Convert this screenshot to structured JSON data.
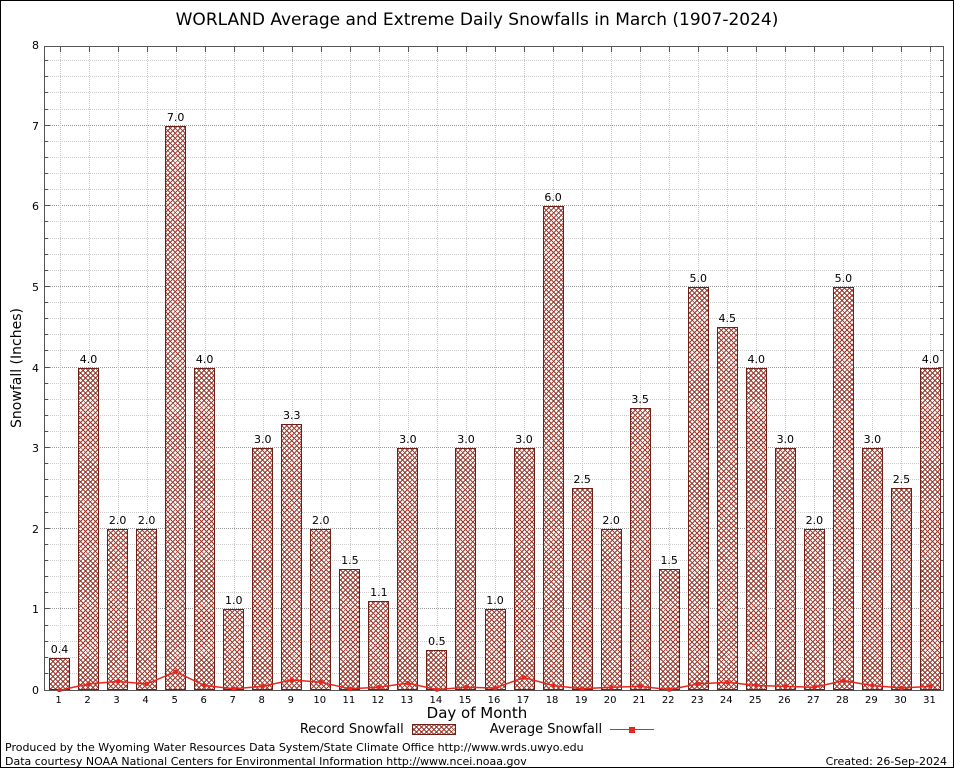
{
  "title": "WORLAND Average and Extreme Daily Snowfalls in March (1907-2024)",
  "chart_data": {
    "type": "bar",
    "title": "WORLAND Average and Extreme Daily Snowfalls in March (1907-2024)",
    "xlabel": "Day of Month",
    "ylabel": "Snowfall (Inches)",
    "ylim": [
      0,
      8
    ],
    "yticks": [
      0,
      1,
      2,
      3,
      4,
      5,
      6,
      7,
      8
    ],
    "grid": true,
    "legend_position": "bottom",
    "categories": [
      1,
      2,
      3,
      4,
      5,
      6,
      7,
      8,
      9,
      10,
      11,
      12,
      13,
      14,
      15,
      16,
      17,
      18,
      19,
      20,
      21,
      22,
      23,
      24,
      25,
      26,
      27,
      28,
      29,
      30,
      31
    ],
    "series": [
      {
        "name": "Record Snowfall",
        "type": "bar",
        "values": [
          0.4,
          4.0,
          2.0,
          2.0,
          7.0,
          4.0,
          1.0,
          3.0,
          3.3,
          2.0,
          1.5,
          1.1,
          3.0,
          0.5,
          3.0,
          1.0,
          3.0,
          6.0,
          2.5,
          2.0,
          3.5,
          1.5,
          5.0,
          4.5,
          4.0,
          3.0,
          2.0,
          5.0,
          3.0,
          2.5,
          4.0
        ]
      },
      {
        "name": "Average Snowfall",
        "type": "line",
        "values": [
          0.02,
          0.1,
          0.13,
          0.1,
          0.25,
          0.08,
          0.04,
          0.07,
          0.15,
          0.12,
          0.04,
          0.06,
          0.11,
          0.03,
          0.06,
          0.05,
          0.18,
          0.08,
          0.04,
          0.06,
          0.07,
          0.03,
          0.1,
          0.12,
          0.08,
          0.07,
          0.06,
          0.14,
          0.08,
          0.05,
          0.07
        ]
      }
    ],
    "colors": {
      "bar_hatch": "#9c3a2e",
      "bar_border": "#6e1f16",
      "line": "#e8261d"
    }
  },
  "legend": {
    "record_label": "Record Snowfall",
    "average_label": "Average Snowfall"
  },
  "footer": {
    "line1": "Produced by the Wyoming Water Resources Data System/State Climate Office http://www.wrds.uwyo.edu",
    "line2": "Data courtesy NOAA National Centers for Environmental Information http://www.ncei.noaa.gov",
    "created": "Created: 26-Sep-2024"
  }
}
